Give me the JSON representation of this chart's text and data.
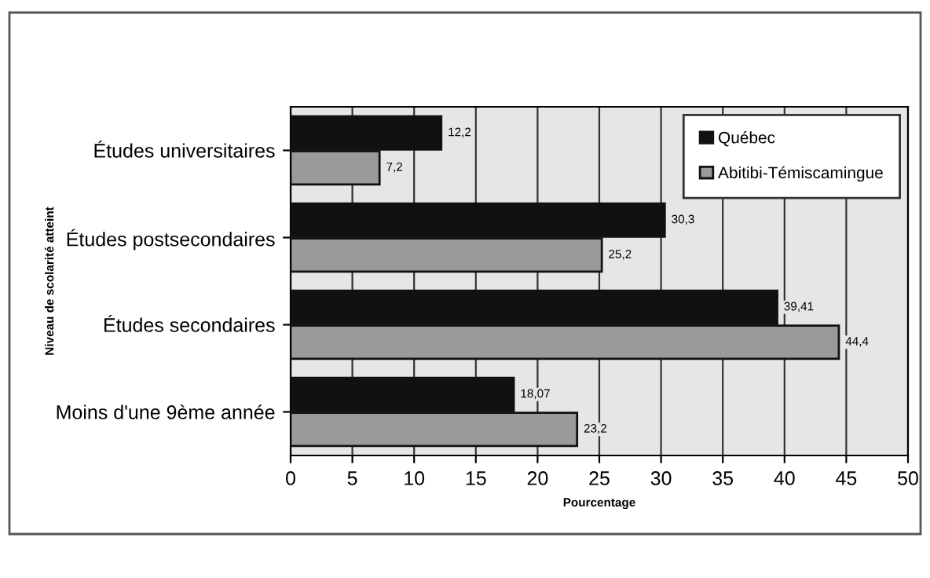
{
  "chart_data": {
    "type": "bar",
    "orientation": "horizontal",
    "categories": [
      "Études universitaires",
      "Études postsecondaires",
      "Études secondaires",
      "Moins d'une 9ème année"
    ],
    "series": [
      {
        "name": "Québec",
        "color": "#111111",
        "values": [
          12.2,
          30.3,
          39.41,
          18.07
        ],
        "value_labels": [
          "12,2",
          "30,3",
          "39,41",
          "18,07"
        ]
      },
      {
        "name": "Abitibi-Témiscamingue",
        "color": "#9a9a9a",
        "values": [
          7.2,
          25.2,
          44.4,
          23.2
        ],
        "value_labels": [
          "7,2",
          "25,2",
          "44,4",
          "23,2"
        ]
      }
    ],
    "xlim": [
      0,
      50
    ],
    "xticks": [
      0,
      5,
      10,
      15,
      20,
      25,
      30,
      35,
      40,
      45,
      50
    ],
    "xlabel": "Pourcentage",
    "ylabel": "Niveau de scolarité atteint",
    "grid": "x",
    "legend": "top right"
  }
}
